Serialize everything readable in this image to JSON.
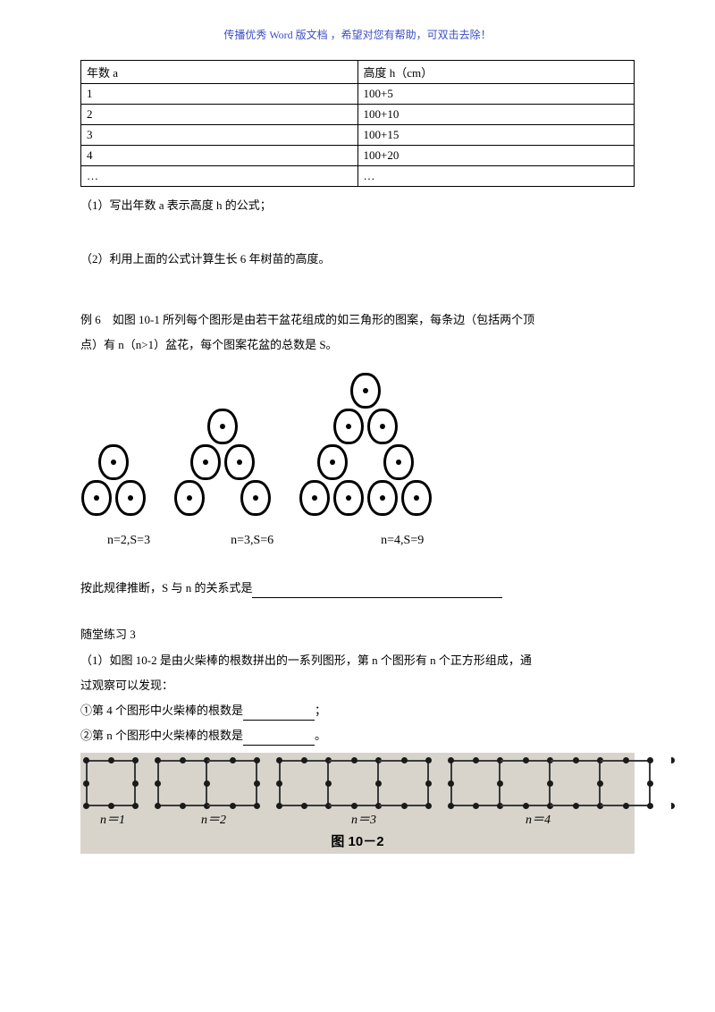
{
  "header": {
    "note": "传播优秀 Word 版文档 ，希望对您有帮助，可双击去除！"
  },
  "table": {
    "headers": [
      "年数 a",
      "高度 h（cm）"
    ],
    "rows": [
      [
        "1",
        "100+5"
      ],
      [
        "2",
        "100+10"
      ],
      [
        "3",
        "100+15"
      ],
      [
        "4",
        "100+20"
      ],
      [
        "…",
        "…"
      ]
    ]
  },
  "q1": "（1）写出年数 a 表示高度 h 的公式；",
  "q2": "（2）利用上面的公式计算生长 6 年树苗的高度。",
  "ex6_line1": "例 6　如图 10-1 所列每个图形是由若干盆花组成的如三角形的图案，每条边（包括两个顶",
  "ex6_line2": "点）有 n（n>1）盆花，每个图案花盆的总数是 S。",
  "fig1": {
    "groups": [
      {
        "rows": [
          1,
          2
        ],
        "label": "n=2,S=3"
      },
      {
        "rows": [
          1,
          2,
          3
        ],
        "label": "n=3,S=6"
      },
      {
        "rows": [
          1,
          2,
          2,
          4
        ],
        "label": "n=4,S=9"
      }
    ],
    "label1": "n=2,S=3",
    "label2": "n=3,S=6",
    "label3": "n=4,S=9"
  },
  "rule_prefix": "按此规律推断，S 与 n 的关系式是",
  "practice3_title": "随堂练习 3",
  "practice3_line1": "（1）如图 10-2 是由火柴棒的根数拼出的一系列图形，第 n 个图形有 n 个正方形组成，通",
  "practice3_line2": "过观察可以发现：",
  "practice3_a": "①第 4 个图形中火柴棒的根数是",
  "practice3_a_end": "；",
  "practice3_b": "②第 n 个图形中火柴棒的根数是",
  "practice3_b_end": "。",
  "fig2": {
    "groups": [
      1,
      2,
      3,
      4
    ],
    "labels": [
      "n＝1",
      "n＝2",
      "n＝3",
      "n＝4"
    ],
    "caption": "图 10－2",
    "bg": "#d8d4cb",
    "stick_color": "#3a3a3a"
  }
}
